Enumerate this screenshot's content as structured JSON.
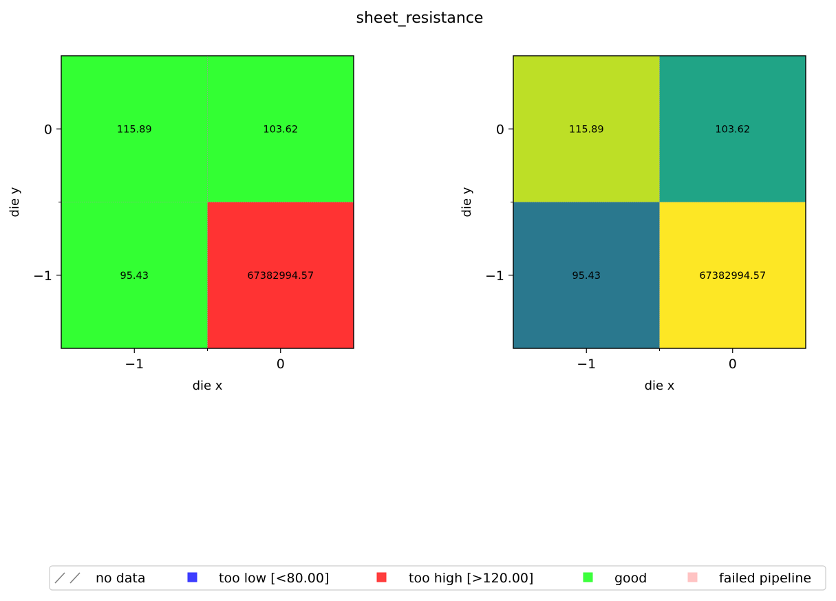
{
  "chart_data": [
    {
      "type": "heatmap",
      "title": "sheet_resistance",
      "xlabel": "die x",
      "ylabel": "die y",
      "x_ticks": [
        "−1",
        "0"
      ],
      "y_ticks": [
        "0",
        "−1"
      ],
      "x_categories": [
        -1,
        0
      ],
      "y_categories": [
        0,
        -1
      ],
      "cells": [
        {
          "x": -1,
          "y": 0,
          "value": 115.89,
          "label": "115.89",
          "color": "#33ff33"
        },
        {
          "x": 0,
          "y": 0,
          "value": 103.62,
          "label": "103.62",
          "color": "#33ff33"
        },
        {
          "x": -1,
          "y": -1,
          "value": 95.43,
          "label": "95.43",
          "color": "#33ff33"
        },
        {
          "x": 0,
          "y": -1,
          "value": 67382994.57,
          "label": "67382994.57",
          "color": "#ff3333"
        }
      ],
      "color_mode": "binned by limits"
    },
    {
      "type": "heatmap",
      "xlabel": "die x",
      "ylabel": "die y",
      "x_ticks": [
        "−1",
        "0"
      ],
      "y_ticks": [
        "0",
        "−1"
      ],
      "x_categories": [
        -1,
        0
      ],
      "y_categories": [
        0,
        -1
      ],
      "cells": [
        {
          "x": -1,
          "y": 0,
          "value": 115.89,
          "label": "115.89",
          "color": "#bddf26"
        },
        {
          "x": 0,
          "y": 0,
          "value": 103.62,
          "label": "103.62",
          "color": "#20a486"
        },
        {
          "x": -1,
          "y": -1,
          "value": 95.43,
          "label": "95.43",
          "color": "#2a788e"
        },
        {
          "x": 0,
          "y": -1,
          "value": 67382994.57,
          "label": "67382994.57",
          "color": "#fde725"
        }
      ],
      "color_mode": "continuous (viridis-like)"
    }
  ],
  "legend": {
    "placement": "bottom-center",
    "items": [
      {
        "label": "no data",
        "marker": "hatch",
        "color": "#808080"
      },
      {
        "label": "too low [<80.00]",
        "marker": "square",
        "color": "#3333ff"
      },
      {
        "label": "too high [>120.00]",
        "marker": "square",
        "color": "#ff3333"
      },
      {
        "label": "good",
        "marker": "square",
        "color": "#33ff33"
      },
      {
        "label": "failed pipeline",
        "marker": "square",
        "color": "#ffc0c0"
      }
    ]
  }
}
